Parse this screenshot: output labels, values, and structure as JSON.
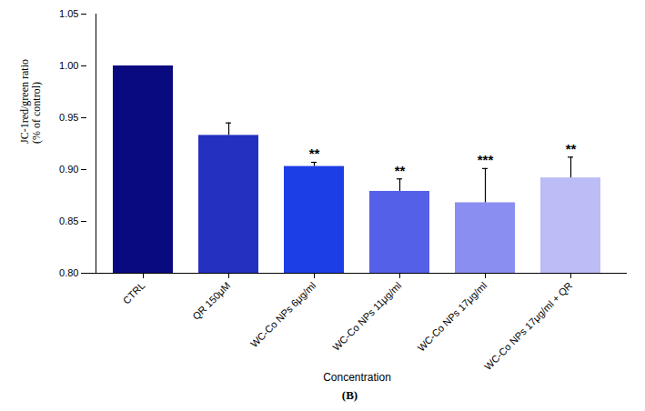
{
  "chart_data": {
    "type": "bar",
    "y_label": "JC-1red/green ratio\n(% of control)",
    "x_label": "Concentration",
    "caption": "(B)",
    "categories": [
      "CTRL",
      "QR 150μM",
      "WC-Co NPs 6μg/ml",
      "WC-Co NPs 11μg/ml",
      "WC-Co NPs 17μg/ml",
      "WC-Co NPs 17μg/ml + QR"
    ],
    "values": [
      1.0,
      0.933,
      0.903,
      0.879,
      0.868,
      0.892
    ],
    "errors": [
      0,
      0.012,
      0.004,
      0.012,
      0.033,
      0.02
    ],
    "significance": [
      null,
      null,
      "**",
      "**",
      "***",
      "**"
    ],
    "colors": [
      "#0a0a80",
      "#2430c0",
      "#1c3ee6",
      "#5560e8",
      "#8a8ef0",
      "#bcbcf6"
    ],
    "ylim": [
      0.8,
      1.05
    ],
    "yticks": [
      {
        "value": 0.8,
        "label": "0.80"
      },
      {
        "value": 0.85,
        "label": "0.85"
      },
      {
        "value": 0.9,
        "label": "0.90"
      },
      {
        "value": 0.95,
        "label": "0.95"
      },
      {
        "value": 1.0,
        "label": "1.00"
      },
      {
        "value": 1.05,
        "label": "1.05"
      }
    ],
    "grid": false
  }
}
